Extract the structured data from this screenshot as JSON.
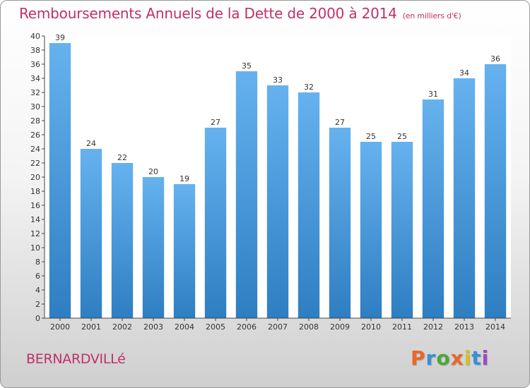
{
  "header": {
    "title": "Remboursements Annuels de la Dette de 2000 à 2014",
    "unit_note": "(en milliers d'€)"
  },
  "footer": {
    "city": "BERNARDVILLé",
    "brand_letters": [
      "P",
      "r",
      "o",
      "x",
      "i",
      "t",
      "i"
    ],
    "brand_colors": [
      "#e8682a",
      "#3a8fd8",
      "#4aa83a",
      "#e8682a",
      "#d8c020",
      "#3a8fd8",
      "#9a4ac8"
    ]
  },
  "colors": {
    "bar_top": "#66b2ef",
    "bar_bottom": "#2e7ec2",
    "title": "#c0306a"
  },
  "chart_data": {
    "type": "bar",
    "title": "Remboursements Annuels de la Dette de 2000 à 2014",
    "xlabel": "",
    "ylabel": "",
    "ylim": [
      0,
      40
    ],
    "ytick_step": 2,
    "grid": false,
    "categories": [
      "2000",
      "2001",
      "2002",
      "2003",
      "2004",
      "2005",
      "2006",
      "2007",
      "2008",
      "2009",
      "2010",
      "2011",
      "2012",
      "2013",
      "2014"
    ],
    "values": [
      39,
      24,
      22,
      20,
      19,
      27,
      35,
      33,
      32,
      27,
      25,
      25,
      31,
      34,
      36
    ]
  }
}
